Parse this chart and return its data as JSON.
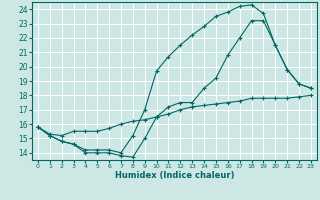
{
  "xlabel": "Humidex (Indice chaleur)",
  "bg_color": "#cde8e4",
  "grid_color": "#ffffff",
  "line_color": "#006666",
  "xlim": [
    -0.5,
    23.5
  ],
  "ylim": [
    13.5,
    24.5
  ],
  "xticks": [
    0,
    1,
    2,
    3,
    4,
    5,
    6,
    7,
    8,
    9,
    10,
    11,
    12,
    13,
    14,
    15,
    16,
    17,
    18,
    19,
    20,
    21,
    22,
    23
  ],
  "yticks": [
    14,
    15,
    16,
    17,
    18,
    19,
    20,
    21,
    22,
    23,
    24
  ],
  "line1_x": [
    0,
    1,
    2,
    3,
    4,
    5,
    6,
    7,
    8,
    9,
    10,
    11,
    12,
    13,
    14,
    15,
    16,
    17,
    18,
    19,
    20,
    21,
    22,
    23
  ],
  "line1_y": [
    15.8,
    15.2,
    14.8,
    14.6,
    14.0,
    14.0,
    14.0,
    13.8,
    13.7,
    15.0,
    16.5,
    17.2,
    17.5,
    17.5,
    18.5,
    19.2,
    20.8,
    22.0,
    23.2,
    23.2,
    21.5,
    19.8,
    18.8,
    18.5
  ],
  "line2_x": [
    0,
    1,
    2,
    3,
    4,
    5,
    6,
    7,
    8,
    9,
    10,
    11,
    12,
    13,
    14,
    15,
    16,
    17,
    18,
    19,
    20,
    21,
    22,
    23
  ],
  "line2_y": [
    15.8,
    15.2,
    14.8,
    14.6,
    14.2,
    14.2,
    14.2,
    14.0,
    15.2,
    17.0,
    19.7,
    20.7,
    21.5,
    22.2,
    22.8,
    23.5,
    23.8,
    24.2,
    24.3,
    23.7,
    21.5,
    19.8,
    18.8,
    18.5
  ],
  "line3_x": [
    0,
    1,
    2,
    3,
    4,
    5,
    6,
    7,
    8,
    9,
    10,
    11,
    12,
    13,
    14,
    15,
    16,
    17,
    18,
    19,
    20,
    21,
    22,
    23
  ],
  "line3_y": [
    15.8,
    15.3,
    15.2,
    15.5,
    15.5,
    15.5,
    15.7,
    16.0,
    16.2,
    16.3,
    16.5,
    16.7,
    17.0,
    17.2,
    17.3,
    17.4,
    17.5,
    17.6,
    17.8,
    17.8,
    17.8,
    17.8,
    17.9,
    18.0
  ]
}
